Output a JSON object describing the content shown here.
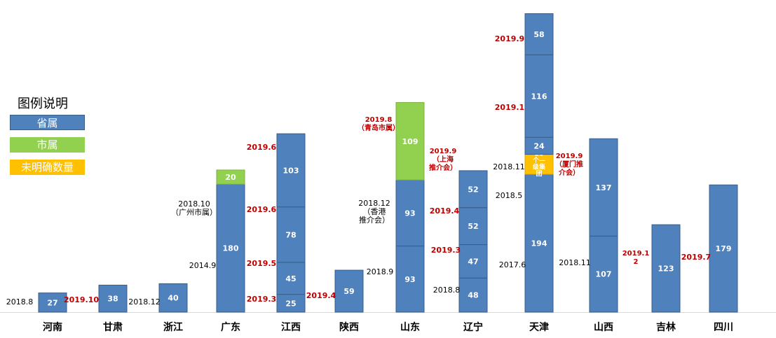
{
  "legend": {
    "title": "图例说明",
    "items": [
      {
        "label": "省属",
        "color": "#4f81bd"
      },
      {
        "label": "市属",
        "color": "#92d050"
      },
      {
        "label": "未明确数量",
        "color": "#ffc000"
      }
    ]
  },
  "chart_data": {
    "type": "bar",
    "stacked": true,
    "categories": [
      "河南",
      "甘肃",
      "浙江",
      "广东",
      "江西",
      "陕西",
      "山东",
      "辽宁",
      "天津",
      "山西",
      "吉林",
      "四川"
    ],
    "bars": [
      {
        "category": "河南",
        "segments": [
          {
            "value": 27,
            "label": "27",
            "kind": "provincial"
          }
        ]
      },
      {
        "category": "甘肃",
        "segments": [
          {
            "value": 38,
            "label": "38",
            "kind": "provincial"
          }
        ]
      },
      {
        "category": "浙江",
        "segments": [
          {
            "value": 40,
            "label": "40",
            "kind": "provincial"
          }
        ]
      },
      {
        "category": "广东",
        "segments": [
          {
            "value": 180,
            "label": "180",
            "kind": "provincial"
          },
          {
            "value": 20,
            "label": "20",
            "kind": "municipal"
          }
        ]
      },
      {
        "category": "江西",
        "segments": [
          {
            "value": 25,
            "label": "25",
            "kind": "provincial"
          },
          {
            "value": 45,
            "label": "45",
            "kind": "provincial"
          },
          {
            "value": 78,
            "label": "78",
            "kind": "provincial"
          },
          {
            "value": 103,
            "label": "103",
            "kind": "provincial"
          }
        ]
      },
      {
        "category": "陕西",
        "segments": [
          {
            "value": 59,
            "label": "59",
            "kind": "provincial"
          }
        ]
      },
      {
        "category": "山东",
        "segments": [
          {
            "value": 93,
            "label": "93",
            "kind": "provincial"
          },
          {
            "value": 93,
            "label": "93",
            "kind": "provincial"
          },
          {
            "value": 109,
            "label": "109",
            "kind": "municipal"
          }
        ]
      },
      {
        "category": "辽宁",
        "segments": [
          {
            "value": 48,
            "label": "48",
            "kind": "provincial"
          },
          {
            "value": 47,
            "label": "47",
            "kind": "provincial"
          },
          {
            "value": 52,
            "label": "52",
            "kind": "provincial"
          },
          {
            "value": 52,
            "label": "52",
            "kind": "provincial"
          }
        ]
      },
      {
        "category": "天津",
        "segments": [
          {
            "value": 194,
            "label": "194",
            "kind": "provincial"
          },
          {
            "value": 28,
            "label": "28\n个—\n级集\n团",
            "kind": "unspecified"
          },
          {
            "value": 24,
            "label": "24",
            "kind": "provincial"
          },
          {
            "value": 116,
            "label": "116",
            "kind": "provincial"
          },
          {
            "value": 58,
            "label": "58",
            "kind": "provincial"
          }
        ]
      },
      {
        "category": "山西",
        "segments": [
          {
            "value": 107,
            "label": "107",
            "kind": "provincial"
          },
          {
            "value": 137,
            "label": "137",
            "kind": "provincial"
          }
        ]
      },
      {
        "category": "吉林",
        "segments": [
          {
            "value": 123,
            "label": "123",
            "kind": "provincial"
          }
        ]
      },
      {
        "category": "四川",
        "segments": [
          {
            "value": 179,
            "label": "179",
            "kind": "provincial"
          }
        ]
      }
    ],
    "annotations": [
      {
        "text": "2018.8",
        "color": "#000000"
      },
      {
        "text": "2019.10",
        "color": "#c00000"
      },
      {
        "text": "2018.12",
        "color": "#000000"
      },
      {
        "text": "2014.9",
        "color": "#000000"
      },
      {
        "text": "2018.10\n（广州市属）",
        "color": "#000000"
      },
      {
        "text": "2019.6",
        "color": "#c00000"
      },
      {
        "text": "2019.6",
        "color": "#c00000"
      },
      {
        "text": "2019.5",
        "color": "#c00000"
      },
      {
        "text": "2019.3",
        "color": "#c00000"
      },
      {
        "text": "2019.4",
        "color": "#c00000"
      },
      {
        "text": "2018.9",
        "color": "#000000"
      },
      {
        "text": "2018.12\n（香港\n推介会）",
        "color": "#000000"
      },
      {
        "text": "2019.8\n（青岛市属）",
        "color": "#c00000"
      },
      {
        "text": "2019.9\n（上海\n推介会）",
        "color": "#c00000"
      },
      {
        "text": "2019.4",
        "color": "#c00000"
      },
      {
        "text": "2019.3",
        "color": "#c00000"
      },
      {
        "text": "2018.8",
        "color": "#000000"
      },
      {
        "text": "2019.9",
        "color": "#c00000"
      },
      {
        "text": "2019.1",
        "color": "#c00000"
      },
      {
        "text": "2018.11",
        "color": "#000000"
      },
      {
        "text": "2018.5",
        "color": "#000000"
      },
      {
        "text": "2017.6",
        "color": "#000000"
      },
      {
        "text": "2019.9\n（厦门推\n介会）",
        "color": "#c00000"
      },
      {
        "text": "2018.11",
        "color": "#000000"
      },
      {
        "text": "2019.1\n2",
        "color": "#c00000"
      },
      {
        "text": "2019.7",
        "color": "#c00000"
      }
    ],
    "colors": {
      "provincial": "#4f81bd",
      "municipal": "#92d050",
      "unspecified": "#ffc000",
      "annotation_red": "#c00000",
      "annotation_black": "#000000"
    },
    "title": "",
    "xlabel": "",
    "ylabel": "",
    "grid": false
  }
}
